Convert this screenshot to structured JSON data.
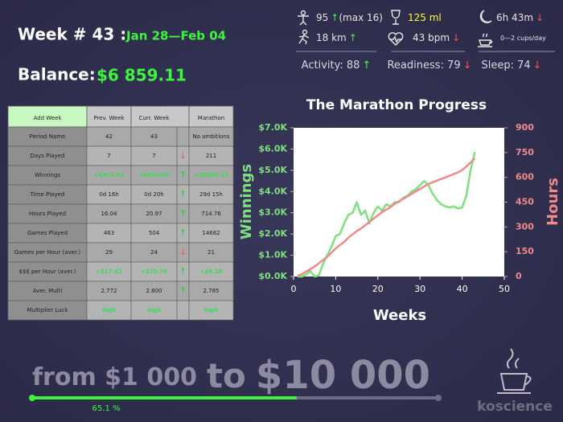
{
  "header": {
    "week": "Week # 43 :",
    "dates": "Jan 28—Feb 04",
    "balance_label": "Balance:",
    "balance": "$6 859.11"
  },
  "stats": [
    {
      "text": "95",
      "arrow": "↑",
      "extra": "(max 16)"
    },
    {
      "text": "125 ml"
    },
    {
      "text": "6h 43m",
      "arrow": "↓"
    },
    {
      "text": "18 km",
      "arrow": "↑"
    },
    {
      "text": "43 bpm",
      "arrow": "↓"
    },
    {
      "text": "0—2 cups/day"
    }
  ],
  "scores": [
    {
      "text": "Activity: 88",
      "arrow": "↑"
    },
    {
      "text": "Readiness: 79",
      "arrow": "↓"
    },
    {
      "text": "Sleep: 74",
      "arrow": "↓"
    }
  ],
  "table": {
    "header": [
      "Add Week",
      "Prev. Week",
      "Curr. Week",
      "Marathon"
    ],
    "rows": [
      [
        "Period Name",
        "42",
        "43",
        "",
        "No ambitions"
      ],
      [
        "Days Played",
        "7",
        "7",
        "↓",
        "211"
      ],
      [
        "Winnings",
        "+$373.52",
        "+$533.50",
        "↑",
        "+$5859.11"
      ],
      [
        "Time Played",
        "0d 16h",
        "0d 20h",
        "↑",
        "29d 15h"
      ],
      [
        "Hours Played",
        "16.04",
        "20.97",
        "↑",
        "714.76"
      ],
      [
        "Games Played",
        "463",
        "504",
        "↑",
        "14682"
      ],
      [
        "Games per Hour (aver.)",
        "29",
        "24",
        "↓",
        "21"
      ],
      [
        "$$$ per Hour (aver.)",
        "+$17.42",
        "+$25.74",
        "↑",
        "+$8.20"
      ],
      [
        "Aver. Multi",
        "2.772",
        "2.800",
        "↑",
        "2.785"
      ],
      [
        "Multiplier Luck",
        "high",
        "high",
        "",
        "high"
      ]
    ]
  },
  "chart_data": {
    "type": "line",
    "title": "The Marathon Progress",
    "xlabel": "Weeks",
    "ylabel": "Winnings",
    "y2label": "Hours",
    "x": [
      1,
      2,
      3,
      4,
      5,
      6,
      7,
      8,
      9,
      10,
      11,
      12,
      13,
      14,
      15,
      16,
      17,
      18,
      19,
      20,
      21,
      22,
      23,
      24,
      25,
      26,
      27,
      28,
      29,
      30,
      31,
      32,
      33,
      34,
      35,
      36,
      37,
      38,
      39,
      40,
      41,
      42,
      43
    ],
    "series": [
      {
        "color": "#7ee07e",
        "values": [
          0,
          0,
          100,
          250,
          0,
          50,
          600,
          1000,
          1400,
          1900,
          2000,
          2500,
          2900,
          3000,
          3500,
          2900,
          3100,
          2500,
          3000,
          3300,
          3100,
          3400,
          3300,
          3500,
          3500,
          3700,
          3800,
          4000,
          4100,
          4300,
          4500,
          4300,
          3900,
          3600,
          3400,
          3300,
          3250,
          3300,
          3200,
          3250,
          3800,
          5000,
          5859.11
        ]
      },
      {
        "color": "#f08a8a",
        "axis": "y2",
        "values": [
          5,
          15,
          30,
          45,
          60,
          80,
          100,
          120,
          145,
          170,
          190,
          210,
          235,
          255,
          275,
          290,
          310,
          330,
          350,
          370,
          390,
          405,
          420,
          440,
          455,
          470,
          485,
          500,
          515,
          530,
          545,
          560,
          570,
          580,
          590,
          600,
          610,
          620,
          630,
          645,
          665,
          690,
          714.76
        ]
      }
    ],
    "xlim": [
      0,
      50
    ],
    "xticks": [
      0,
      10,
      20,
      30,
      40,
      50
    ],
    "ylim": [
      0,
      7000
    ],
    "yticks": [
      {
        "value": 0,
        "label": "$0.0K"
      },
      {
        "value": 1000,
        "label": "$1.0K"
      },
      {
        "value": 2000,
        "label": "$2.0K"
      },
      {
        "value": 3000,
        "label": "$3.0K"
      },
      {
        "value": 4000,
        "label": "$4.0K"
      },
      {
        "value": 5000,
        "label": "$5.0K"
      },
      {
        "value": 6000,
        "label": "$6.0K"
      },
      {
        "value": 7000,
        "label": "$7.0K"
      }
    ],
    "y2lim": [
      0,
      900
    ],
    "y2ticks": [
      0,
      150,
      300,
      450,
      600,
      750,
      900
    ]
  },
  "footer": {
    "goal": [
      "from $1 000",
      "to",
      "$10 000"
    ],
    "progress": 65.1,
    "progress_label": "65.1 %",
    "brand": "koscience"
  }
}
